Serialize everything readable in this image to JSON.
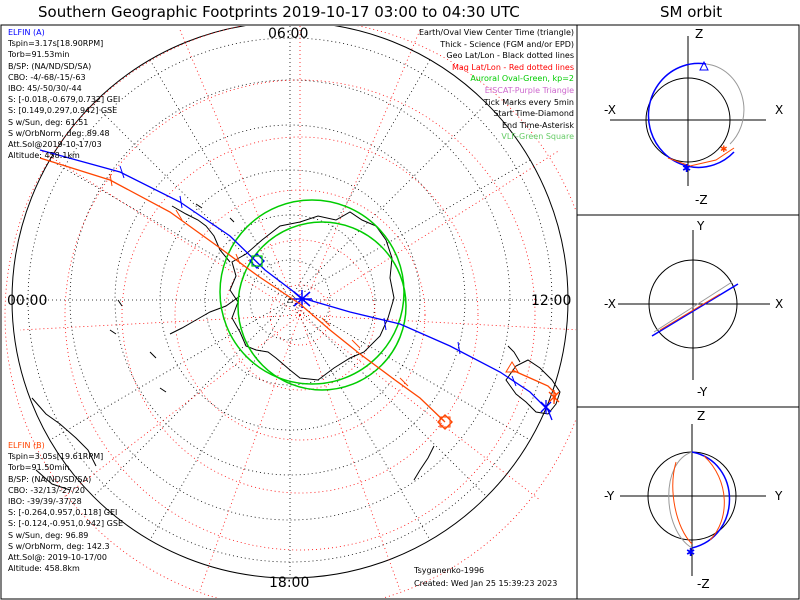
{
  "title": "Southern Geographic Footprints 2019-10-17 03:00 to 04:30 UTC",
  "right_title": "SM orbit",
  "hours": {
    "top": "06:00",
    "left": "00:00",
    "right": "12:00",
    "bottom": "18:00"
  },
  "legend": [
    {
      "text": "Earth/Oval View Center Time (triangle)",
      "color": "#000000"
    },
    {
      "text": "Thick - Science (FGM and/or EPD)",
      "color": "#000000"
    },
    {
      "text": "Geo Lat/Lon - Black dotted lines",
      "color": "#000000"
    },
    {
      "text": "Mag Lat/Lon - Red dotted lines",
      "color": "#ff0000"
    },
    {
      "text": "Auroral Oval-Green, kp=2",
      "color": "#00cc00"
    },
    {
      "text": "EISCAT-Purple Triangle",
      "color": "#cc66cc"
    },
    {
      "text": "Tick Marks every 5min",
      "color": "#000000"
    },
    {
      "text": "Start Time-Diamond",
      "color": "#000000"
    },
    {
      "text": "End Time-Asterisk",
      "color": "#000000"
    },
    {
      "text": "VLF-Green Square",
      "color": "#66cc66"
    }
  ],
  "elfin_a": {
    "color": "#0000ff",
    "lines": [
      "ELFIN (A)",
      "Tspin=3.17s[18.90RPM]",
      "Torb=91.53min",
      "B/SP: (NA/ND/SD/SA)",
      "CBO: -4/-68/-15/-63",
      "IBO: 45/-50/30/-44",
      "S: [-0.018,-0.679,0.732] GEI",
      "S: [0.149,0.297,0.942] GSE",
      "S w/Sun, deg: 61.51",
      "S w/OrbNorm, deg: 89.48",
      "Att.Sol@2019-10-17/03",
      "Altitude: 458.1km"
    ]
  },
  "elfin_b": {
    "color": "#ff4500",
    "lines": [
      "ELFIN (B)",
      "Tspin=3.05s[19.61RPM]",
      "Torb=91.50min",
      "B/SP: (NA/ND/SD/SA)",
      "CBO: -32/13/-27/20",
      "IBO: -39/39/-37/28",
      "S: [-0.264,0.957,0.118] GEI",
      "S: [-0.124,-0.951,0.942] GSE",
      "S w/Sun, deg: 96.89",
      "S w/OrbNorm, deg: 142.3",
      "Att.Sol@: 2019-10-17/00",
      "Altitude: 458.8km"
    ]
  },
  "model": "Tsyganenko-1996",
  "created": "Created: Wed Jan 25 15:39:23 2023",
  "panels": [
    {
      "top": "Z",
      "bottom": "-Z",
      "left": "-X",
      "right": "X"
    },
    {
      "top": "Y",
      "bottom": "-Y",
      "left": "-X",
      "right": "X"
    },
    {
      "top": "Z",
      "bottom": "-Z",
      "left": "-Y",
      "right": "Y"
    }
  ],
  "colors": {
    "elfin_a": "#0000ff",
    "elfin_b": "#ff4500",
    "oval": "#00cc00",
    "mag_grid": "#ff0000",
    "geo_grid": "#000000"
  }
}
